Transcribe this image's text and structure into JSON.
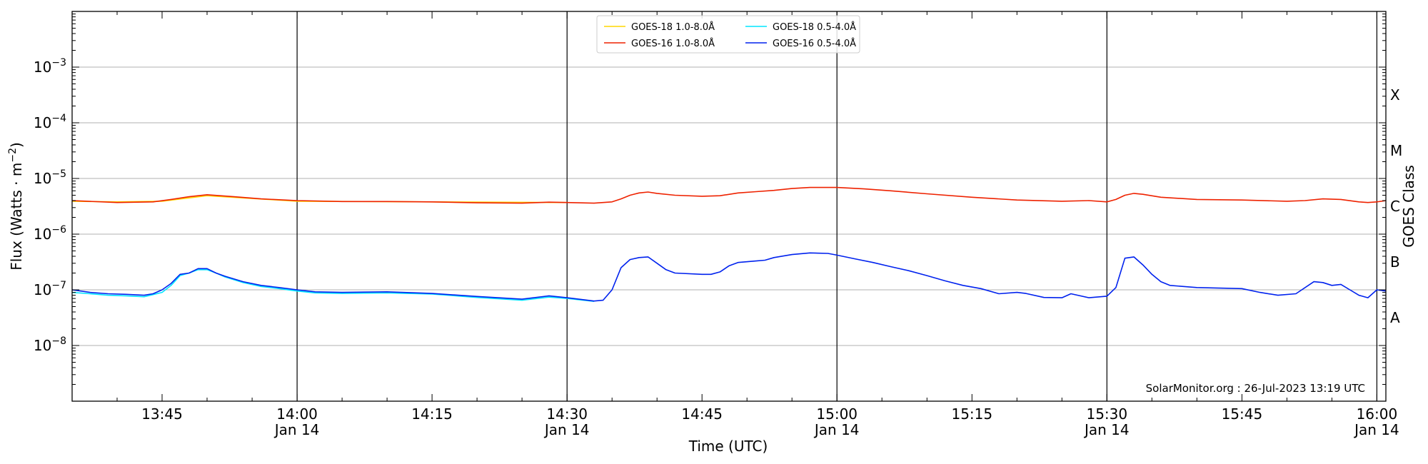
{
  "chart_data": {
    "type": "line",
    "title": "",
    "xlabel": "Time (UTC)",
    "ylabel_base": "Flux (Watts · m",
    "ylabel_exp": "−2",
    "ylabel_close": ")",
    "right_axis_label": "GOES Class",
    "y_scale": "log",
    "ylim": [
      1e-09,
      0.01
    ],
    "x_range": [
      "13:35",
      "16:01"
    ],
    "y_ticks": [
      {
        "value": 1e-08,
        "base": "10",
        "exp": "−8"
      },
      {
        "value": 1e-07,
        "base": "10",
        "exp": "−7"
      },
      {
        "value": 1e-06,
        "base": "10",
        "exp": "−6"
      },
      {
        "value": 1e-05,
        "base": "10",
        "exp": "−5"
      },
      {
        "value": 0.0001,
        "base": "10",
        "exp": "−4"
      },
      {
        "value": 0.001,
        "base": "10",
        "exp": "−3"
      }
    ],
    "x_ticks": [
      {
        "time": "13:45",
        "label": "13:45",
        "date": ""
      },
      {
        "time": "14:00",
        "label": "14:00",
        "date": "Jan 14"
      },
      {
        "time": "14:15",
        "label": "14:15",
        "date": ""
      },
      {
        "time": "14:30",
        "label": "14:30",
        "date": "Jan 14"
      },
      {
        "time": "14:45",
        "label": "14:45",
        "date": ""
      },
      {
        "time": "15:00",
        "label": "15:00",
        "date": "Jan 14"
      },
      {
        "time": "15:15",
        "label": "15:15",
        "date": ""
      },
      {
        "time": "15:30",
        "label": "15:30",
        "date": "Jan 14"
      },
      {
        "time": "15:45",
        "label": "15:45",
        "date": ""
      },
      {
        "time": "16:00",
        "label": "16:00",
        "date": "Jan 14"
      }
    ],
    "vertical_lines": [
      "14:00",
      "14:30",
      "15:00",
      "15:30",
      "16:00"
    ],
    "goes_classes": [
      {
        "label": "A",
        "low": 1e-08
      },
      {
        "label": "B",
        "low": 1e-07
      },
      {
        "label": "C",
        "low": 1e-06
      },
      {
        "label": "M",
        "low": 1e-05
      },
      {
        "label": "X",
        "low": 0.0001
      }
    ],
    "grid": true,
    "legend_position": "top-center",
    "credit": "SolarMonitor.org : 26-Jul-2023 13:19 UTC",
    "series": [
      {
        "name": "GOES-18 1.0-8.0Å",
        "color": "#ffd700",
        "points": [
          [
            "13:35",
            3.9e-06
          ],
          [
            "13:40",
            3.8e-06
          ],
          [
            "13:45",
            3.9e-06
          ],
          [
            "13:50",
            4.9e-06
          ],
          [
            "14:00",
            3.9e-06
          ],
          [
            "14:15",
            3.8e-06
          ],
          [
            "14:30",
            3.7e-06
          ]
        ]
      },
      {
        "name": "GOES-18 0.5-4.0Å",
        "color": "#00e5ff",
        "points": [
          [
            "13:35",
            9e-08
          ],
          [
            "13:37",
            8.5e-08
          ],
          [
            "13:39",
            8e-08
          ],
          [
            "13:41",
            7.8e-08
          ],
          [
            "13:43",
            7.5e-08
          ],
          [
            "13:44",
            8.2e-08
          ],
          [
            "13:45",
            9e-08
          ],
          [
            "13:46",
            1.2e-07
          ],
          [
            "13:47",
            1.8e-07
          ],
          [
            "13:48",
            2e-07
          ],
          [
            "13:49",
            2.3e-07
          ],
          [
            "13:50",
            2.3e-07
          ],
          [
            "13:51",
            2e-07
          ],
          [
            "13:52",
            1.7e-07
          ],
          [
            "13:54",
            1.35e-07
          ],
          [
            "13:56",
            1.15e-07
          ],
          [
            "13:58",
            1.05e-07
          ],
          [
            "14:00",
            9.5e-08
          ],
          [
            "14:02",
            8.8e-08
          ],
          [
            "14:05",
            8.6e-08
          ],
          [
            "14:10",
            8.8e-08
          ],
          [
            "14:15",
            8.4e-08
          ],
          [
            "14:20",
            7.3e-08
          ],
          [
            "14:25",
            6.5e-08
          ],
          [
            "14:28",
            7.4e-08
          ],
          [
            "14:30",
            7e-08
          ],
          [
            "14:33",
            6.2e-08
          ]
        ]
      },
      {
        "name": "GOES-16 1.0-8.0Å",
        "color": "#ee2200",
        "points": [
          [
            "13:35",
            4e-06
          ],
          [
            "13:40",
            3.7e-06
          ],
          [
            "13:44",
            3.8e-06
          ],
          [
            "13:46",
            4.2e-06
          ],
          [
            "13:48",
            4.7e-06
          ],
          [
            "13:50",
            5.1e-06
          ],
          [
            "13:53",
            4.7e-06
          ],
          [
            "13:56",
            4.3e-06
          ],
          [
            "14:00",
            4e-06
          ],
          [
            "14:05",
            3.85e-06
          ],
          [
            "14:10",
            3.85e-06
          ],
          [
            "14:15",
            3.8e-06
          ],
          [
            "14:20",
            3.65e-06
          ],
          [
            "14:25",
            3.6e-06
          ],
          [
            "14:28",
            3.75e-06
          ],
          [
            "14:30",
            3.7e-06
          ],
          [
            "14:33",
            3.6e-06
          ],
          [
            "14:35",
            3.8e-06
          ],
          [
            "14:36",
            4.3e-06
          ],
          [
            "14:37",
            5e-06
          ],
          [
            "14:38",
            5.5e-06
          ],
          [
            "14:39",
            5.7e-06
          ],
          [
            "14:40",
            5.4e-06
          ],
          [
            "14:42",
            5e-06
          ],
          [
            "14:45",
            4.8e-06
          ],
          [
            "14:47",
            4.9e-06
          ],
          [
            "14:49",
            5.5e-06
          ],
          [
            "14:51",
            5.8e-06
          ],
          [
            "14:53",
            6.1e-06
          ],
          [
            "14:55",
            6.6e-06
          ],
          [
            "14:57",
            6.9e-06
          ],
          [
            "15:00",
            6.9e-06
          ],
          [
            "15:03",
            6.5e-06
          ],
          [
            "15:06",
            6e-06
          ],
          [
            "15:10",
            5.3e-06
          ],
          [
            "15:15",
            4.6e-06
          ],
          [
            "15:20",
            4.1e-06
          ],
          [
            "15:25",
            3.9e-06
          ],
          [
            "15:28",
            4e-06
          ],
          [
            "15:30",
            3.8e-06
          ],
          [
            "15:31",
            4.2e-06
          ],
          [
            "15:32",
            5e-06
          ],
          [
            "15:33",
            5.4e-06
          ],
          [
            "15:34",
            5.2e-06
          ],
          [
            "15:36",
            4.6e-06
          ],
          [
            "15:40",
            4.2e-06
          ],
          [
            "15:45",
            4.1e-06
          ],
          [
            "15:50",
            3.9e-06
          ],
          [
            "15:52",
            4e-06
          ],
          [
            "15:54",
            4.3e-06
          ],
          [
            "15:56",
            4.2e-06
          ],
          [
            "15:58",
            3.8e-06
          ],
          [
            "15:59",
            3.7e-06
          ],
          [
            "16:00",
            3.8e-06
          ],
          [
            "16:01",
            4e-06
          ]
        ]
      },
      {
        "name": "GOES-16 0.5-4.0Å",
        "color": "#0022ee",
        "points": [
          [
            "13:35",
            1e-07
          ],
          [
            "13:37",
            9e-08
          ],
          [
            "13:39",
            8.5e-08
          ],
          [
            "13:41",
            8.3e-08
          ],
          [
            "13:43",
            8e-08
          ],
          [
            "13:44",
            8.5e-08
          ],
          [
            "13:45",
            1e-07
          ],
          [
            "13:46",
            1.3e-07
          ],
          [
            "13:47",
            1.9e-07
          ],
          [
            "13:48",
            2e-07
          ],
          [
            "13:49",
            2.4e-07
          ],
          [
            "13:50",
            2.4e-07
          ],
          [
            "13:51",
            2e-07
          ],
          [
            "13:52",
            1.75e-07
          ],
          [
            "13:54",
            1.4e-07
          ],
          [
            "13:56",
            1.2e-07
          ],
          [
            "13:58",
            1.1e-07
          ],
          [
            "14:00",
            1e-07
          ],
          [
            "14:02",
            9.2e-08
          ],
          [
            "14:05",
            9e-08
          ],
          [
            "14:10",
            9.2e-08
          ],
          [
            "14:15",
            8.6e-08
          ],
          [
            "14:20",
            7.6e-08
          ],
          [
            "14:25",
            6.8e-08
          ],
          [
            "14:28",
            7.8e-08
          ],
          [
            "14:30",
            7.2e-08
          ],
          [
            "14:33",
            6.3e-08
          ],
          [
            "14:34",
            6.5e-08
          ],
          [
            "14:35",
            1e-07
          ],
          [
            "14:36",
            2.5e-07
          ],
          [
            "14:37",
            3.5e-07
          ],
          [
            "14:38",
            3.8e-07
          ],
          [
            "14:39",
            3.9e-07
          ],
          [
            "14:40",
            3e-07
          ],
          [
            "14:41",
            2.3e-07
          ],
          [
            "14:42",
            2e-07
          ],
          [
            "14:45",
            1.9e-07
          ],
          [
            "14:46",
            1.9e-07
          ],
          [
            "14:47",
            2.1e-07
          ],
          [
            "14:48",
            2.7e-07
          ],
          [
            "14:49",
            3.1e-07
          ],
          [
            "14:51",
            3.3e-07
          ],
          [
            "14:52",
            3.4e-07
          ],
          [
            "14:53",
            3.8e-07
          ],
          [
            "14:55",
            4.3e-07
          ],
          [
            "14:57",
            4.6e-07
          ],
          [
            "14:59",
            4.5e-07
          ],
          [
            "15:00",
            4.2e-07
          ],
          [
            "15:02",
            3.6e-07
          ],
          [
            "15:04",
            3.1e-07
          ],
          [
            "15:06",
            2.6e-07
          ],
          [
            "15:08",
            2.2e-07
          ],
          [
            "15:10",
            1.8e-07
          ],
          [
            "15:12",
            1.45e-07
          ],
          [
            "15:14",
            1.2e-07
          ],
          [
            "15:16",
            1.05e-07
          ],
          [
            "15:18",
            8.5e-08
          ],
          [
            "15:20",
            9e-08
          ],
          [
            "15:21",
            8.6e-08
          ],
          [
            "15:23",
            7.3e-08
          ],
          [
            "15:25",
            7.2e-08
          ],
          [
            "15:26",
            8.5e-08
          ],
          [
            "15:28",
            7.2e-08
          ],
          [
            "15:30",
            7.7e-08
          ],
          [
            "15:31",
            1.1e-07
          ],
          [
            "15:32",
            3.7e-07
          ],
          [
            "15:33",
            3.9e-07
          ],
          [
            "15:34",
            2.8e-07
          ],
          [
            "15:35",
            1.9e-07
          ],
          [
            "15:36",
            1.4e-07
          ],
          [
            "15:37",
            1.2e-07
          ],
          [
            "15:40",
            1.1e-07
          ],
          [
            "15:45",
            1.05e-07
          ],
          [
            "15:47",
            9e-08
          ],
          [
            "15:49",
            8e-08
          ],
          [
            "15:51",
            8.5e-08
          ],
          [
            "15:53",
            1.4e-07
          ],
          [
            "15:54",
            1.35e-07
          ],
          [
            "15:55",
            1.2e-07
          ],
          [
            "15:56",
            1.25e-07
          ],
          [
            "15:57",
            1e-07
          ],
          [
            "15:58",
            8e-08
          ],
          [
            "15:59",
            7.2e-08
          ],
          [
            "16:00",
            1e-07
          ],
          [
            "16:01",
            9.5e-08
          ]
        ]
      }
    ]
  }
}
